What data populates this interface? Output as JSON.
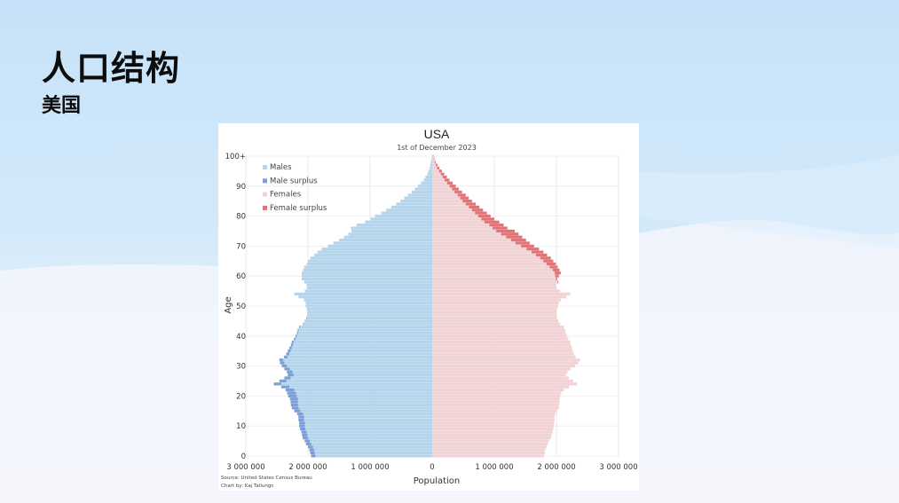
{
  "slide": {
    "title": "人口结构",
    "subtitle": "美国"
  },
  "chart_data": {
    "type": "bar",
    "orientation": "population-pyramid",
    "title": "USA",
    "subtitle": "1st of December 2023",
    "xlabel": "Population",
    "ylabel": "Age",
    "xlim": [
      -3000000,
      3000000
    ],
    "ylim": [
      0,
      100
    ],
    "x_tick_labels": [
      "3 000 000",
      "2 000 000",
      "1 000 000",
      "0",
      "1 000 000",
      "2 000 000",
      "3 000 000"
    ],
    "x_tick_values": [
      -3000000,
      -2000000,
      -1000000,
      0,
      1000000,
      2000000,
      3000000
    ],
    "y_tick_labels": [
      "0",
      "10",
      "20",
      "30",
      "40",
      "50",
      "60",
      "70",
      "80",
      "90",
      "100+"
    ],
    "y_tick_values": [
      0,
      10,
      20,
      30,
      40,
      50,
      60,
      70,
      80,
      90,
      100
    ],
    "legend_position": "top-left",
    "legend": [
      {
        "name": "Males",
        "color": "#b5d5ec"
      },
      {
        "name": "Male surplus",
        "color": "#7b9fd6"
      },
      {
        "name": "Females",
        "color": "#f1d3d6"
      },
      {
        "name": "Female surplus",
        "color": "#e07477"
      }
    ],
    "ages": [
      0,
      1,
      2,
      3,
      4,
      5,
      6,
      7,
      8,
      9,
      10,
      11,
      12,
      13,
      14,
      15,
      16,
      17,
      18,
      19,
      20,
      21,
      22,
      23,
      24,
      25,
      26,
      27,
      28,
      29,
      30,
      31,
      32,
      33,
      34,
      35,
      36,
      37,
      38,
      39,
      40,
      41,
      42,
      43,
      44,
      45,
      46,
      47,
      48,
      49,
      50,
      51,
      52,
      53,
      54,
      55,
      56,
      57,
      58,
      59,
      60,
      61,
      62,
      63,
      64,
      65,
      66,
      67,
      68,
      69,
      70,
      71,
      72,
      73,
      74,
      75,
      76,
      77,
      78,
      79,
      80,
      81,
      82,
      83,
      84,
      85,
      86,
      87,
      88,
      89,
      90,
      91,
      92,
      93,
      94,
      95,
      96,
      97,
      98,
      99,
      100
    ],
    "series": [
      {
        "name": "Males",
        "values": [
          1880000,
          1890000,
          1900000,
          1920000,
          1950000,
          1970000,
          2000000,
          2010000,
          2020000,
          2040000,
          2050000,
          2050000,
          2060000,
          2060000,
          2080000,
          2120000,
          2150000,
          2160000,
          2160000,
          2160000,
          2180000,
          2190000,
          2220000,
          2300000,
          2430000,
          2350000,
          2280000,
          2230000,
          2250000,
          2290000,
          2340000,
          2380000,
          2400000,
          2330000,
          2300000,
          2280000,
          2260000,
          2240000,
          2230000,
          2200000,
          2180000,
          2160000,
          2150000,
          2130000,
          2070000,
          2040000,
          2020000,
          2000000,
          2000000,
          2010000,
          2030000,
          2030000,
          2060000,
          2150000,
          2220000,
          2050000,
          2020000,
          2020000,
          2060000,
          2100000,
          2100000,
          2100000,
          2080000,
          2060000,
          2020000,
          2000000,
          1960000,
          1900000,
          1850000,
          1780000,
          1680000,
          1590000,
          1500000,
          1420000,
          1350000,
          1300000,
          1310000,
          1220000,
          1080000,
          990000,
          920000,
          820000,
          740000,
          660000,
          580000,
          510000,
          450000,
          390000,
          330000,
          280000,
          230000,
          180000,
          140000,
          110000,
          80000,
          60000,
          40000,
          30000,
          20000,
          10000,
          6000
        ]
      },
      {
        "name": "Male surplus",
        "values": [
          70000,
          75000,
          78000,
          80000,
          82000,
          83000,
          85000,
          86000,
          87000,
          88000,
          90000,
          92000,
          93000,
          94000,
          95000,
          100000,
          110000,
          115000,
          120000,
          130000,
          140000,
          145000,
          140000,
          130000,
          120000,
          110000,
          100000,
          95000,
          90000,
          90000,
          80000,
          70000,
          60000,
          55000,
          50000,
          45000,
          40000,
          35000,
          30000,
          25000,
          20000,
          18000,
          15000,
          12000,
          10000,
          9000,
          8000,
          7000,
          6000,
          5000,
          4000,
          3000,
          2000,
          1000,
          0,
          0,
          0,
          0,
          0,
          0,
          0,
          0,
          0,
          0,
          0,
          0,
          0,
          0,
          0,
          0,
          0,
          0,
          0,
          0,
          0,
          0,
          0,
          0,
          0,
          0,
          0,
          0,
          0,
          0,
          0,
          0,
          0,
          0,
          0,
          0,
          0,
          0,
          0,
          0,
          0,
          0,
          0,
          0,
          0,
          0,
          0
        ]
      },
      {
        "name": "Females",
        "values": [
          1800000,
          1810000,
          1820000,
          1840000,
          1860000,
          1880000,
          1910000,
          1920000,
          1940000,
          1950000,
          1960000,
          1960000,
          1970000,
          1970000,
          1980000,
          2010000,
          2040000,
          2040000,
          2050000,
          2050000,
          2060000,
          2080000,
          2120000,
          2200000,
          2330000,
          2270000,
          2200000,
          2150000,
          2180000,
          2230000,
          2300000,
          2350000,
          2380000,
          2310000,
          2280000,
          2260000,
          2250000,
          2230000,
          2220000,
          2190000,
          2170000,
          2150000,
          2140000,
          2120000,
          2060000,
          2030000,
          2010000,
          2000000,
          2000000,
          2010000,
          2030000,
          2040000,
          2070000,
          2160000,
          2220000,
          2060000,
          2000000,
          1990000,
          2020000,
          1990000,
          1980000,
          1970000,
          1940000,
          1890000,
          1840000,
          1790000,
          1740000,
          1670000,
          1600000,
          1520000,
          1430000,
          1340000,
          1270000,
          1190000,
          1110000,
          1030000,
          970000,
          920000,
          840000,
          790000,
          740000,
          690000,
          640000,
          590000,
          540000,
          490000,
          450000,
          410000,
          360000,
          320000,
          280000,
          240000,
          200000,
          170000,
          140000,
          110000,
          80000,
          60000,
          40000,
          25000,
          15000
        ]
      },
      {
        "name": "Female surplus",
        "values": [
          0,
          0,
          0,
          0,
          0,
          0,
          0,
          0,
          0,
          0,
          0,
          0,
          0,
          0,
          0,
          0,
          0,
          0,
          0,
          0,
          0,
          0,
          0,
          0,
          0,
          0,
          0,
          0,
          0,
          0,
          0,
          0,
          0,
          0,
          0,
          0,
          0,
          0,
          0,
          0,
          0,
          0,
          0,
          0,
          0,
          0,
          0,
          0,
          0,
          0,
          0,
          0,
          0,
          0,
          0,
          0,
          0,
          0,
          10000,
          20000,
          60000,
          100000,
          110000,
          130000,
          150000,
          160000,
          170000,
          180000,
          190000,
          200000,
          210000,
          230000,
          240000,
          260000,
          280000,
          300000,
          240000,
          230000,
          240000,
          210000,
          200000,
          190000,
          180000,
          170000,
          160000,
          150000,
          140000,
          130000,
          120000,
          110000,
          100000,
          90000,
          80000,
          65000,
          55000,
          45000,
          35000,
          25000,
          15000,
          10000,
          5000
        ]
      }
    ],
    "source": "Source: United States Census Bureau",
    "credit": "Chart by: Kaj Tallungs"
  }
}
